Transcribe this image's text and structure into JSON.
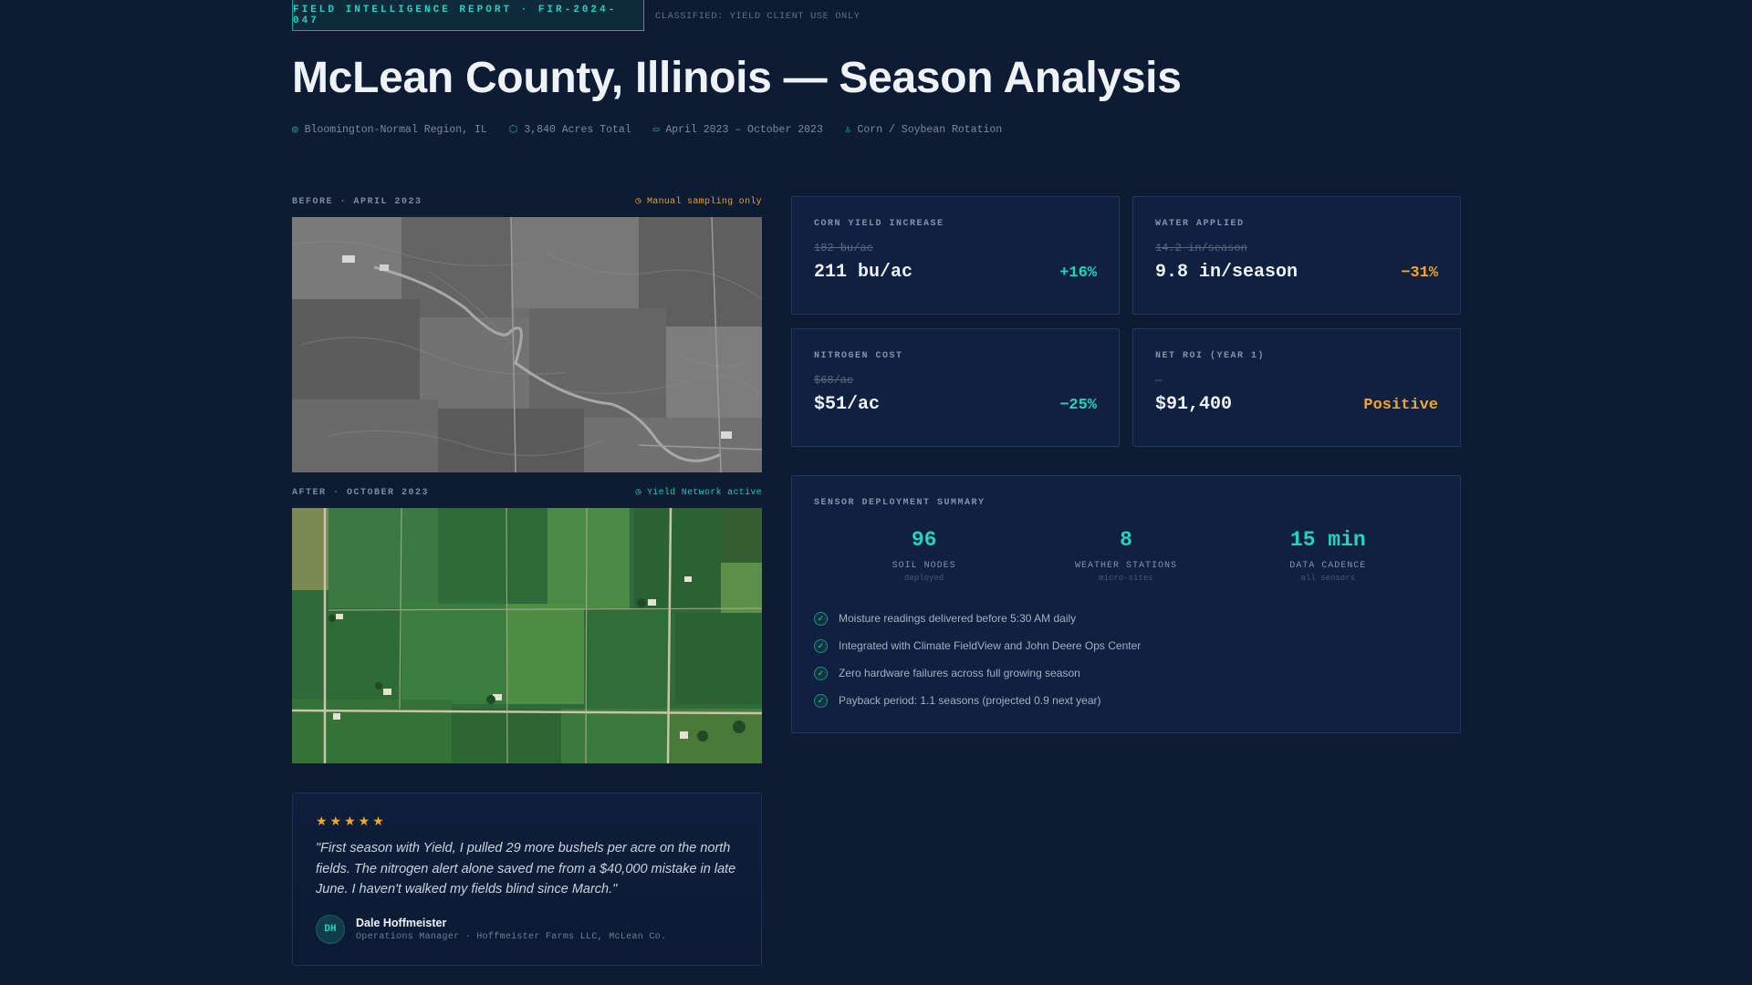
{
  "header": {
    "report_tag": "FIELD INTELLIGENCE REPORT · FIR-2024-047",
    "classified": "CLASSIFIED: YIELD CLIENT USE ONLY",
    "title": "McLean County, Illinois — Season Analysis",
    "meta": [
      {
        "icon": "location-icon",
        "text": "Bloomington-Normal Region, IL"
      },
      {
        "icon": "area-icon",
        "text": "3,840 Acres Total"
      },
      {
        "icon": "calendar-icon",
        "text": "April 2023 – October 2023"
      },
      {
        "icon": "crop-icon",
        "text": "Corn / Soybean Rotation"
      }
    ]
  },
  "images": {
    "before": {
      "label": "BEFORE · APRIL 2023",
      "note": "Manual sampling only"
    },
    "after": {
      "label": "AFTER · OCTOBER 2023",
      "note": "Yield Network active"
    }
  },
  "testimonial": {
    "rating": 5,
    "stars": "★★★★★",
    "quote": "\"First season with Yield, I pulled 29 more bushels per acre on the north fields. The nitrogen alert alone saved me from a $40,000 mistake in late June. I haven't walked my fields blind since March.\"",
    "initials": "DH",
    "name": "Dale Hoffmeister",
    "role": "Operations Manager · Hoffmeister Farms LLC, McLean Co."
  },
  "cards": [
    {
      "label": "CORN YIELD INCREASE",
      "old": "182 bu/ac",
      "value": "211 bu/ac",
      "delta": "+16%",
      "color": "#22d3c0"
    },
    {
      "label": "WATER APPLIED",
      "old": "14.2 in/season",
      "value": "9.8 in/season",
      "delta": "−31%",
      "color": "#f5a623"
    },
    {
      "label": "NITROGEN COST",
      "old": "$68/ac",
      "value": "$51/ac",
      "delta": "−25%",
      "color": "#22d3c0"
    },
    {
      "label": "NET ROI (YEAR 1)",
      "old": "—",
      "value": "$91,400",
      "delta": "Positive",
      "color": "#f5a623"
    }
  ],
  "sensors": {
    "title": "SENSOR DEPLOYMENT SUMMARY",
    "stats": [
      {
        "value": "96",
        "name": "SOIL NODES",
        "sub": "deployed"
      },
      {
        "value": "8",
        "name": "WEATHER STATIONS",
        "sub": "micro-sites"
      },
      {
        "value": "15 min",
        "name": "DATA CADENCE",
        "sub": "all sensors"
      }
    ],
    "checks": [
      "Moisture readings delivered before 5:30 AM daily",
      "Integrated with Climate FieldView and John Deere Ops Center",
      "Zero hardware failures across full growing season",
      "Payback period: 1.1 seasons (projected 0.9 next year)"
    ]
  }
}
